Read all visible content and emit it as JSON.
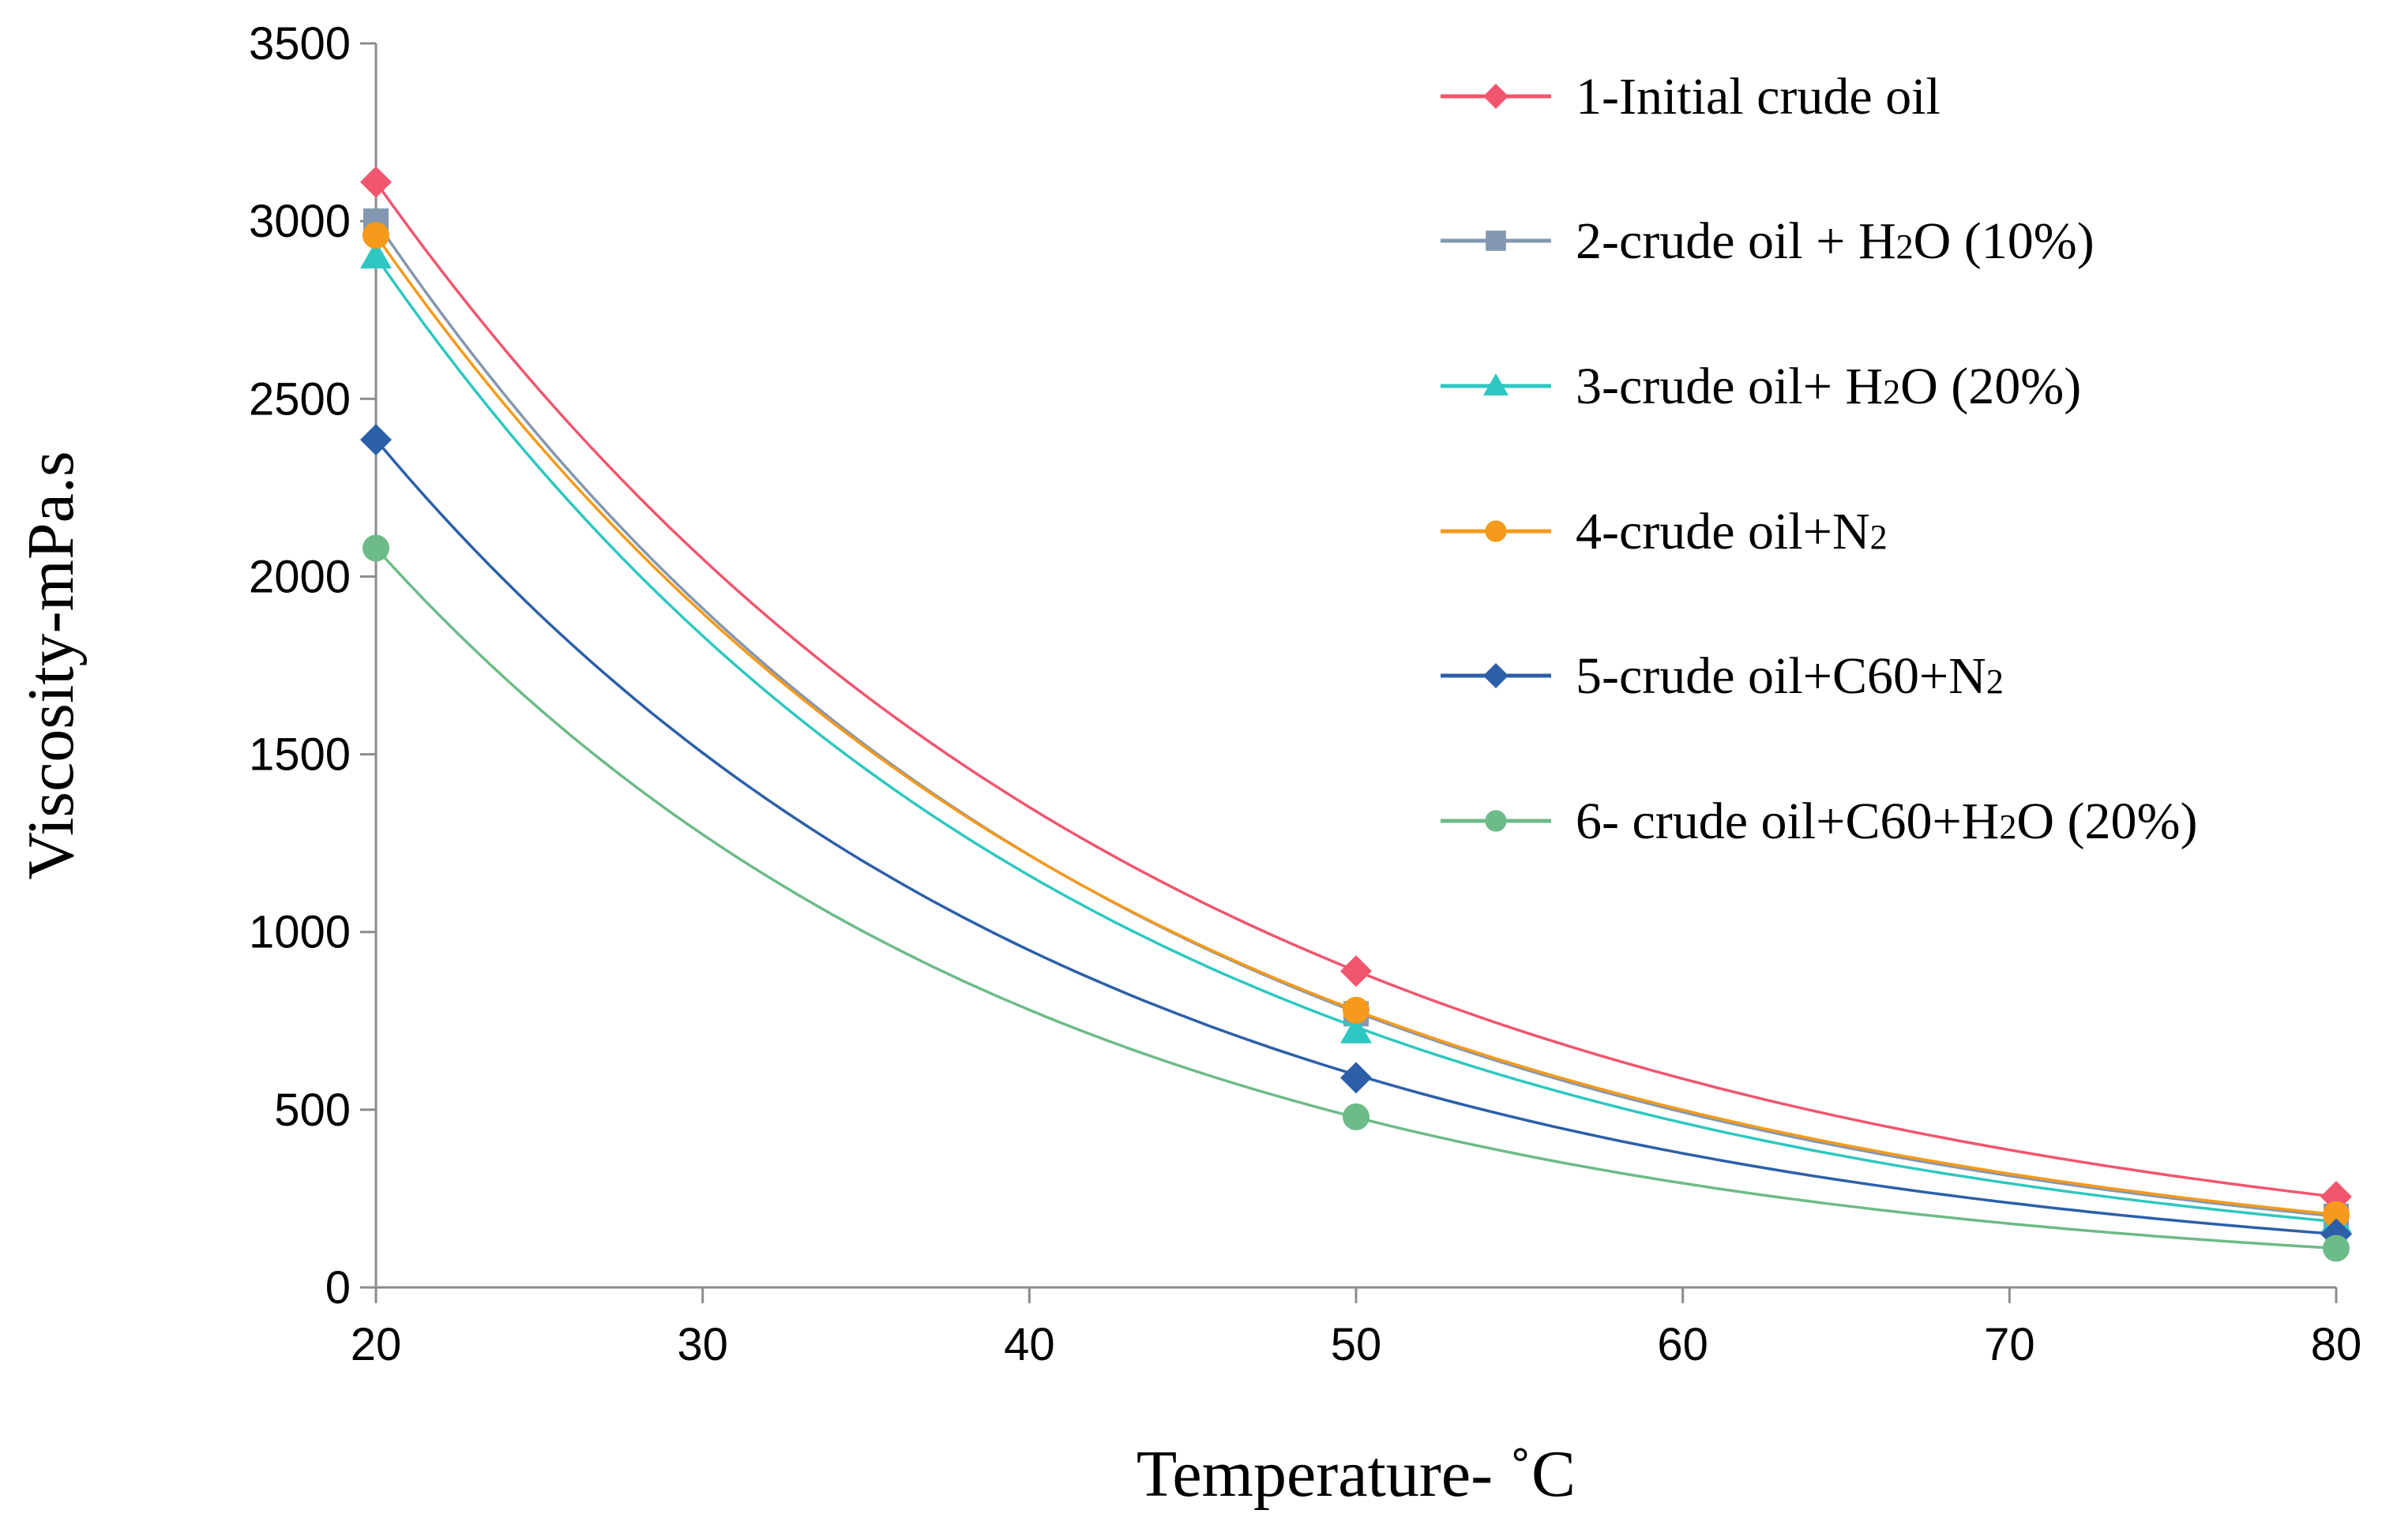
{
  "chart_data": {
    "type": "line",
    "title": "",
    "xlabel": "Temperature- ˚C",
    "ylabel": "Viscosity-mPa.s",
    "xlim": [
      20,
      80
    ],
    "ylim": [
      0,
      3500
    ],
    "xticks": [
      20,
      30,
      40,
      50,
      60,
      70,
      80
    ],
    "yticks": [
      0,
      500,
      1000,
      1500,
      2000,
      2500,
      3000,
      3500
    ],
    "grid": false,
    "legend_position": "top-right",
    "x": [
      20,
      50,
      80
    ],
    "series": [
      {
        "name": "1-Initial crude oil",
        "label_main": "1-Initial crude oil",
        "label_sub": "",
        "label_tail": "",
        "color": "#f0566e",
        "marker": "diamond",
        "values": [
          3110,
          890,
          255
        ]
      },
      {
        "name": "2-crude oil + H2O (10%)",
        "label_main": "2-crude oil + H",
        "label_sub": "2",
        "label_tail": "O (10%)",
        "color": "#8497b0",
        "marker": "square",
        "values": [
          3000,
          770,
          200
        ]
      },
      {
        "name": "3-crude oil+ H2O (20%)",
        "label_main": "3-crude oil+ H",
        "label_sub": "2",
        "label_tail": "O (20%)",
        "color": "#2ec7c1",
        "marker": "triangle",
        "values": [
          2900,
          720,
          185
        ]
      },
      {
        "name": "4-crude oil+N2",
        "label_main": "4-crude oil+N",
        "label_sub": "2",
        "label_tail": "",
        "color": "#f59a1b",
        "marker": "circle",
        "values": [
          2960,
          780,
          205
        ]
      },
      {
        "name": "5-crude oil+C60+N2",
        "label_main": "5-crude oil+C60+N",
        "label_sub": "2",
        "label_tail": "",
        "color": "#2c5fa8",
        "marker": "diamond",
        "values": [
          2385,
          590,
          150
        ]
      },
      {
        "name": "6- crude oil+C60+H2O (20%)",
        "label_main": "6- crude oil+C60+H",
        "label_sub": "2",
        "label_tail": "O (20%)",
        "color": "#6dbb88",
        "marker": "circle",
        "values": [
          2080,
          480,
          110
        ]
      }
    ]
  }
}
